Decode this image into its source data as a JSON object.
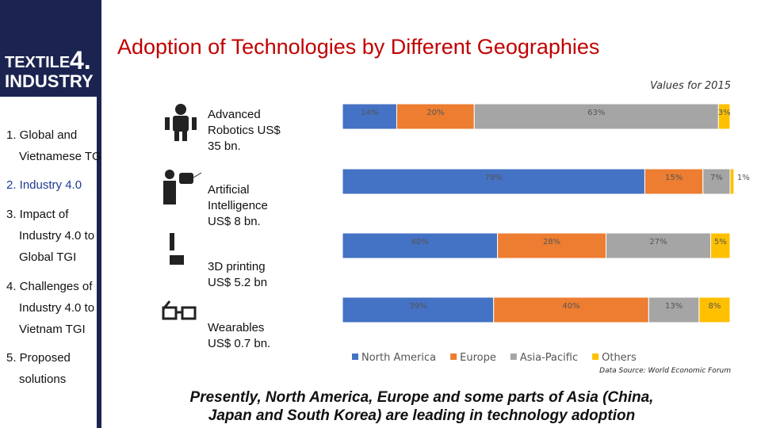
{
  "title": "Adoption of  Technologies by Different Geographies",
  "logo": {
    "line1": "TEXTILE",
    "number": "4.",
    "line2": "INDUSTRY"
  },
  "menu": [
    [
      "1. Global and",
      "Vietnamese TG"
    ],
    [
      "2. Industry 4.0"
    ],
    [
      "3. Impact of",
      "Industry 4.0 to",
      "Global TGI"
    ],
    [
      "4. Challenges of",
      "Industry 4.0 to",
      "Vietnam TGI"
    ],
    [
      "5. Proposed",
      "solutions"
    ]
  ],
  "caption": [
    "Presently, North America, Europe and some parts of Asia (China,",
    "Japan and South Korea) are leading in technology adoption"
  ],
  "chart_data": {
    "type": "stacked-bar-horizontal",
    "subtitle": "Values for 2015",
    "source": "Data Source: World Economic Forum",
    "categories": [
      "Advanced Robotics US$ 35 bn.",
      "Artificial Intelligence US$ 8 bn.",
      "3D printing US$ 5.2 bn",
      "Wearables US$ 0.7 bn."
    ],
    "series": [
      {
        "name": "North America",
        "color": "#4472c4",
        "values": [
          14,
          78,
          40,
          39
        ],
        "value_labels": [
          "14%",
          "78%",
          "40%",
          "39%"
        ]
      },
      {
        "name": "Europe",
        "color": "#ed7d31",
        "values": [
          20,
          15,
          28,
          40
        ],
        "value_labels": [
          "20%",
          "15%",
          "28%",
          "40%"
        ]
      },
      {
        "name": "Asia-Pacific",
        "color": "#a5a5a5",
        "values": [
          63,
          7,
          27,
          13
        ],
        "value_labels": [
          "63%",
          "7%",
          "27%",
          "13%"
        ]
      },
      {
        "name": "Others",
        "color": "#ffc000",
        "values": [
          3,
          1,
          5,
          8
        ],
        "value_labels": [
          "3%",
          "1%",
          "5%",
          "8%"
        ]
      }
    ],
    "legend": "bottom"
  }
}
